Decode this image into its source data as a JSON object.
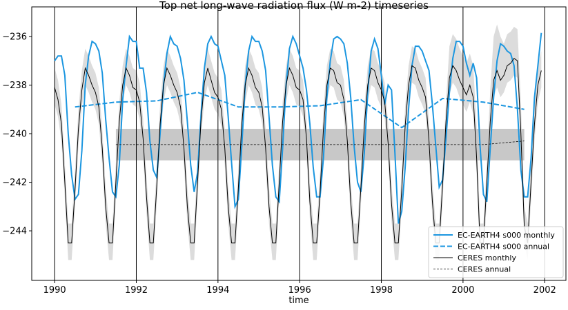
{
  "chart_data": {
    "type": "line",
    "title": "Top net long-wave radiation flux (W m-2) timeseries",
    "x_label": "time",
    "xlim": [
      1989.44,
      2002.52
    ],
    "ylim": [
      -246.04,
      -234.78
    ],
    "xticks": [
      1990,
      1992,
      1994,
      1996,
      1998,
      2000,
      2002
    ],
    "yticks": [
      {
        "value": -244,
        "label": "−244"
      },
      {
        "value": -242,
        "label": "−242"
      },
      {
        "value": -240,
        "label": "−240"
      },
      {
        "value": -238,
        "label": "−238"
      },
      {
        "value": -236,
        "label": "−236"
      }
    ],
    "x_grid": true,
    "grid_color": "#000000",
    "legend": "lower right",
    "x": [
      1990,
      1990.083,
      1990.167,
      1990.25,
      1990.333,
      1990.417,
      1990.5,
      1990.583,
      1990.667,
      1990.75,
      1990.833,
      1990.917,
      1991,
      1991.083,
      1991.167,
      1991.25,
      1991.333,
      1991.417,
      1991.5,
      1991.583,
      1991.667,
      1991.75,
      1991.833,
      1991.917,
      1992,
      1992.083,
      1992.167,
      1992.25,
      1992.333,
      1992.417,
      1992.5,
      1992.583,
      1992.667,
      1992.75,
      1992.833,
      1992.917,
      1993,
      1993.083,
      1993.167,
      1993.25,
      1993.333,
      1993.417,
      1993.5,
      1993.583,
      1993.667,
      1993.75,
      1993.833,
      1993.917,
      1994,
      1994.083,
      1994.167,
      1994.25,
      1994.333,
      1994.417,
      1994.5,
      1994.583,
      1994.667,
      1994.75,
      1994.833,
      1994.917,
      1995,
      1995.083,
      1995.167,
      1995.25,
      1995.333,
      1995.417,
      1995.5,
      1995.583,
      1995.667,
      1995.75,
      1995.833,
      1995.917,
      1996,
      1996.083,
      1996.167,
      1996.25,
      1996.333,
      1996.417,
      1996.5,
      1996.583,
      1996.667,
      1996.75,
      1996.833,
      1996.917,
      1997,
      1997.083,
      1997.167,
      1997.25,
      1997.333,
      1997.417,
      1997.5,
      1997.583,
      1997.667,
      1997.75,
      1997.833,
      1997.917,
      1998,
      1998.083,
      1998.167,
      1998.25,
      1998.333,
      1998.417,
      1998.5,
      1998.583,
      1998.667,
      1998.75,
      1998.833,
      1998.917,
      1999,
      1999.083,
      1999.167,
      1999.25,
      1999.333,
      1999.417,
      1999.5,
      1999.583,
      1999.667,
      1999.75,
      1999.833,
      1999.917,
      2000,
      2000.083,
      2000.167,
      2000.25,
      2000.333,
      2000.417,
      2000.5,
      2000.583,
      2000.667,
      2000.75,
      2000.833,
      2000.917,
      2001,
      2001.083,
      2001.167,
      2001.25,
      2001.333,
      2001.417,
      2001.5,
      2001.583,
      2001.667,
      2001.75,
      2001.833,
      2001.917
    ],
    "band": {
      "color": "#dcdcdc",
      "low": [
        -238.8,
        -239.3,
        -240.3,
        -242.7,
        -245.2,
        -245.2,
        -243.0,
        -240.5,
        -238.9,
        -238.0,
        -238.3,
        -238.7,
        -239.0,
        -239.6,
        -241.3,
        -243.7,
        -245.2,
        -245.2,
        -242.7,
        -240.2,
        -238.7,
        -238.0,
        -238.3,
        -238.8,
        -238.9,
        -239.4,
        -240.9,
        -243.3,
        -245.2,
        -245.2,
        -242.9,
        -240.3,
        -238.7,
        -238.0,
        -238.3,
        -238.7,
        -239.0,
        -239.6,
        -241.3,
        -243.7,
        -245.2,
        -245.2,
        -242.7,
        -240.2,
        -238.6,
        -238.0,
        -238.5,
        -239.0,
        -239.2,
        -239.7,
        -241.3,
        -243.7,
        -245.2,
        -245.2,
        -242.9,
        -240.3,
        -238.7,
        -238.0,
        -238.3,
        -238.8,
        -239.0,
        -239.6,
        -241.3,
        -243.7,
        -245.2,
        -245.2,
        -242.7,
        -240.2,
        -238.7,
        -238.0,
        -238.3,
        -238.8,
        -238.9,
        -239.3,
        -240.9,
        -243.5,
        -245.2,
        -245.2,
        -243.1,
        -240.5,
        -238.7,
        -238.0,
        -238.1,
        -238.6,
        -238.7,
        -239.3,
        -241.0,
        -243.5,
        -245.2,
        -245.2,
        -242.9,
        -240.4,
        -238.7,
        -238.0,
        -238.1,
        -238.6,
        -238.9,
        -239.4,
        -241.1,
        -243.6,
        -245.2,
        -245.2,
        -243.0,
        -240.4,
        -238.7,
        -237.9,
        -238.0,
        -238.5,
        -238.8,
        -239.2,
        -241.0,
        -243.5,
        -245.2,
        -245.2,
        -242.8,
        -240.2,
        -238.4,
        -237.9,
        -238.1,
        -238.5,
        -238.8,
        -239.1,
        -238.7,
        -239.2,
        -241.7,
        -245.2,
        -245.2,
        -242.7,
        -240.2,
        -238.5,
        -238.1,
        -238.5,
        -238.3,
        -237.9,
        -237.8,
        -237.6,
        -237.7,
        -240.7,
        -244.5,
        -245.2,
        -242.7,
        -240.3,
        -238.7,
        -238.1
      ],
      "high": [
        -237.3,
        -237.8,
        -238.8,
        -241.2,
        -243.7,
        -243.7,
        -241.5,
        -239.0,
        -237.4,
        -236.5,
        -236.8,
        -237.2,
        -237.5,
        -238.1,
        -239.8,
        -242.2,
        -243.7,
        -243.7,
        -241.2,
        -238.7,
        -237.2,
        -236.5,
        -236.8,
        -237.3,
        -237.4,
        -237.9,
        -239.4,
        -241.8,
        -243.7,
        -243.7,
        -241.4,
        -238.8,
        -237.2,
        -236.5,
        -236.8,
        -237.2,
        -237.5,
        -238.1,
        -239.8,
        -242.2,
        -243.7,
        -243.7,
        -241.2,
        -238.7,
        -237.1,
        -236.5,
        -237.0,
        -237.5,
        -237.7,
        -238.2,
        -239.8,
        -242.2,
        -243.7,
        -243.7,
        -241.4,
        -238.8,
        -237.2,
        -236.5,
        -236.8,
        -237.3,
        -237.5,
        -238.1,
        -239.8,
        -242.2,
        -243.7,
        -243.7,
        -241.2,
        -238.7,
        -237.2,
        -236.5,
        -236.8,
        -237.3,
        -237.4,
        -237.8,
        -239.4,
        -242.0,
        -243.7,
        -243.7,
        -241.6,
        -239.0,
        -237.2,
        -236.5,
        -236.6,
        -237.1,
        -237.2,
        -237.8,
        -239.5,
        -242.0,
        -243.7,
        -243.7,
        -241.4,
        -238.9,
        -237.2,
        -236.5,
        -236.6,
        -237.1,
        -237.4,
        -237.9,
        -239.6,
        -242.1,
        -243.7,
        -243.7,
        -241.5,
        -238.9,
        -237.2,
        -236.4,
        -236.5,
        -237.0,
        -237.3,
        -237.7,
        -239.5,
        -242.0,
        -243.7,
        -243.7,
        -241.3,
        -238.7,
        -236.4,
        -235.9,
        -236.1,
        -236.5,
        -236.8,
        -237.1,
        -236.7,
        -237.2,
        -239.7,
        -243.7,
        -243.7,
        -241.2,
        -238.2,
        -236.0,
        -235.5,
        -236.0,
        -236.3,
        -235.9,
        -235.8,
        -235.6,
        -235.7,
        -238.7,
        -243.0,
        -243.7,
        -241.2,
        -238.8,
        -237.2,
        -236.6
      ]
    },
    "annual_band": {
      "color": "#c8c8c8",
      "x": [
        1991.5,
        2001.5
      ],
      "low": -241.1,
      "high": -239.8
    },
    "series": [
      {
        "name": "EC-EARTH4 s000 monthly",
        "color": "#1b96e0",
        "width": 2,
        "dash": false,
        "values": [
          -237.0,
          -236.8,
          -236.8,
          -237.6,
          -240.0,
          -241.7,
          -242.7,
          -242.5,
          -240.7,
          -238.0,
          -236.8,
          -236.2,
          -236.3,
          -236.6,
          -237.5,
          -239.4,
          -241.0,
          -242.4,
          -242.6,
          -241.3,
          -238.6,
          -237.2,
          -236.0,
          -236.2,
          -236.2,
          -237.3,
          -237.3,
          -238.3,
          -240.3,
          -241.5,
          -241.8,
          -240.0,
          -238.0,
          -236.7,
          -236.0,
          -236.3,
          -236.4,
          -236.9,
          -237.8,
          -239.5,
          -241.3,
          -242.4,
          -241.6,
          -239.3,
          -237.3,
          -236.3,
          -236.0,
          -236.3,
          -236.4,
          -237.0,
          -237.6,
          -239.3,
          -241.2,
          -243.0,
          -242.7,
          -240.5,
          -238.0,
          -236.6,
          -236.0,
          -236.2,
          -236.2,
          -236.6,
          -237.4,
          -239.3,
          -241.3,
          -242.6,
          -242.8,
          -240.6,
          -238.0,
          -236.5,
          -236.0,
          -236.3,
          -236.8,
          -237.3,
          -238.2,
          -239.6,
          -241.4,
          -242.6,
          -242.6,
          -241.0,
          -238.5,
          -237.0,
          -236.1,
          -236.0,
          -236.1,
          -236.3,
          -237.1,
          -238.5,
          -240.5,
          -242.0,
          -242.4,
          -240.8,
          -238.3,
          -236.6,
          -236.1,
          -236.5,
          -237.6,
          -238.8,
          -238.0,
          -238.2,
          -240.8,
          -243.7,
          -243.2,
          -241.4,
          -239.0,
          -237.2,
          -236.4,
          -236.4,
          -236.6,
          -237.0,
          -237.4,
          -238.8,
          -240.5,
          -242.2,
          -241.9,
          -240.2,
          -238.3,
          -236.9,
          -236.2,
          -236.2,
          -236.4,
          -237.1,
          -237.6,
          -237.1,
          -237.7,
          -240.5,
          -242.5,
          -242.8,
          -240.6,
          -238.5,
          -237.0,
          -236.3,
          -236.4,
          -236.6,
          -236.7,
          -237.2,
          -239.0,
          -241.5,
          -242.6,
          -242.6,
          -241.0,
          -238.5,
          -237.2,
          -235.85
        ]
      },
      {
        "name": "EC-EARTH4 s000 annual",
        "color": "#1b96e0",
        "width": 2,
        "dash": true,
        "x": [
          1990.5,
          1991.5,
          1992.5,
          1993.5,
          1994.5,
          1995.5,
          1996.5,
          1997.5,
          1998.5,
          1999.5,
          2000.5,
          2001.5
        ],
        "values": [
          -238.9,
          -238.7,
          -238.65,
          -238.3,
          -238.9,
          -238.9,
          -238.85,
          -238.6,
          -239.75,
          -238.55,
          -238.7,
          -239.0
        ]
      },
      {
        "name": "CERES monthly",
        "color": "#000000",
        "width": 1,
        "dash": false,
        "values": [
          -238.1,
          -238.6,
          -239.6,
          -242.0,
          -244.5,
          -244.5,
          -242.3,
          -239.8,
          -238.2,
          -237.3,
          -237.6,
          -238.0,
          -238.3,
          -238.9,
          -240.6,
          -243.0,
          -244.5,
          -244.5,
          -242.0,
          -239.5,
          -238.0,
          -237.3,
          -237.6,
          -238.1,
          -238.2,
          -238.7,
          -240.2,
          -242.6,
          -244.5,
          -244.5,
          -242.2,
          -239.6,
          -238.0,
          -237.3,
          -237.6,
          -238.0,
          -238.3,
          -238.9,
          -240.6,
          -243.0,
          -244.5,
          -244.5,
          -242.0,
          -239.5,
          -237.9,
          -237.3,
          -237.8,
          -238.3,
          -238.5,
          -239.0,
          -240.6,
          -243.0,
          -244.5,
          -244.5,
          -242.2,
          -239.6,
          -238.0,
          -237.3,
          -237.6,
          -238.1,
          -238.3,
          -238.9,
          -240.6,
          -243.0,
          -244.5,
          -244.5,
          -242.0,
          -239.5,
          -238.0,
          -237.3,
          -237.6,
          -238.1,
          -238.2,
          -238.6,
          -240.2,
          -242.8,
          -244.5,
          -244.5,
          -242.4,
          -239.8,
          -238.0,
          -237.3,
          -237.4,
          -237.9,
          -238.0,
          -238.6,
          -240.3,
          -242.8,
          -244.5,
          -244.5,
          -242.2,
          -239.7,
          -238.0,
          -237.3,
          -237.4,
          -237.9,
          -238.2,
          -238.7,
          -240.4,
          -242.9,
          -244.5,
          -244.5,
          -242.3,
          -239.7,
          -238.0,
          -237.2,
          -237.3,
          -237.8,
          -238.1,
          -238.5,
          -240.3,
          -242.8,
          -244.5,
          -244.5,
          -242.1,
          -239.5,
          -237.7,
          -237.2,
          -237.4,
          -237.8,
          -238.1,
          -238.4,
          -238.0,
          -238.5,
          -241.0,
          -244.5,
          -244.5,
          -242.0,
          -239.5,
          -237.8,
          -237.4,
          -237.8,
          -237.6,
          -237.2,
          -237.1,
          -236.9,
          -237.0,
          -240.0,
          -243.8,
          -244.5,
          -242.0,
          -239.6,
          -238.0,
          -237.4
        ]
      },
      {
        "name": "CERES annual",
        "color": "#000000",
        "width": 0.8,
        "dash": true,
        "x": [
          1991.5,
          1992.5,
          1993.5,
          1994.5,
          1995.5,
          1996.5,
          1997.5,
          1998.5,
          1999.5,
          2000.5,
          2001.5
        ],
        "values": [
          -240.45,
          -240.45,
          -240.45,
          -240.45,
          -240.45,
          -240.45,
          -240.45,
          -240.45,
          -240.45,
          -240.45,
          -240.3
        ]
      }
    ]
  }
}
